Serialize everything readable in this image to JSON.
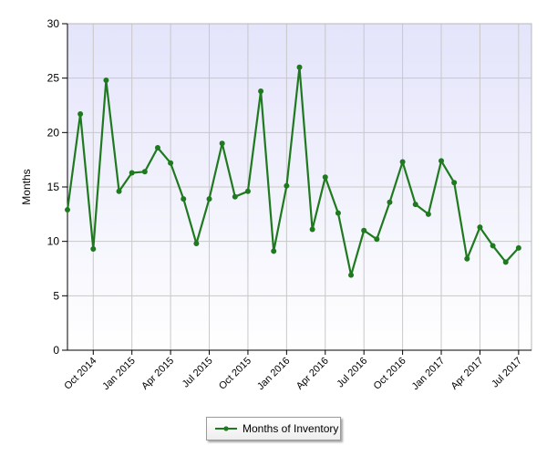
{
  "chart_data": {
    "type": "line",
    "title": "",
    "xlabel": "",
    "ylabel": "Months",
    "ylim": [
      0,
      30
    ],
    "yticks": [
      0,
      5,
      10,
      15,
      20,
      25,
      30
    ],
    "grid": true,
    "legend_position": "bottom",
    "x_tick_labels": [
      "Oct 2014",
      "Jan 2015",
      "Apr 2015",
      "Jul 2015",
      "Oct 2015",
      "Jan 2016",
      "Apr 2016",
      "Jul 2016",
      "Oct 2016",
      "Jan 2017",
      "Apr 2017",
      "Jul 2017"
    ],
    "x": [
      "Aug 2014",
      "Sep 2014",
      "Oct 2014",
      "Nov 2014",
      "Dec 2014",
      "Jan 2015",
      "Feb 2015",
      "Mar 2015",
      "Apr 2015",
      "May 2015",
      "Jun 2015",
      "Jul 2015",
      "Aug 2015",
      "Sep 2015",
      "Oct 2015",
      "Nov 2015",
      "Dec 2015",
      "Jan 2016",
      "Feb 2016",
      "Mar 2016",
      "Apr 2016",
      "May 2016",
      "Jun 2016",
      "Jul 2016",
      "Aug 2016",
      "Sep 2016",
      "Oct 2016",
      "Nov 2016",
      "Dec 2016",
      "Jan 2017",
      "Feb 2017",
      "Mar 2017",
      "Apr 2017",
      "May 2017",
      "Jun 2017",
      "Jul 2017"
    ],
    "series": [
      {
        "name": "Months of Inventory",
        "color": "#1f7a1f",
        "values": [
          12.9,
          21.7,
          9.3,
          24.8,
          14.6,
          16.3,
          16.4,
          18.6,
          17.2,
          13.9,
          9.8,
          13.9,
          19.0,
          14.1,
          14.6,
          23.8,
          9.1,
          15.1,
          26.0,
          11.1,
          15.9,
          12.6,
          6.9,
          11.0,
          10.2,
          13.6,
          17.3,
          13.4,
          12.5,
          17.4,
          15.4,
          8.4,
          11.3,
          9.6,
          8.1,
          9.4
        ]
      }
    ]
  },
  "legend": {
    "label": "Months of Inventory"
  }
}
